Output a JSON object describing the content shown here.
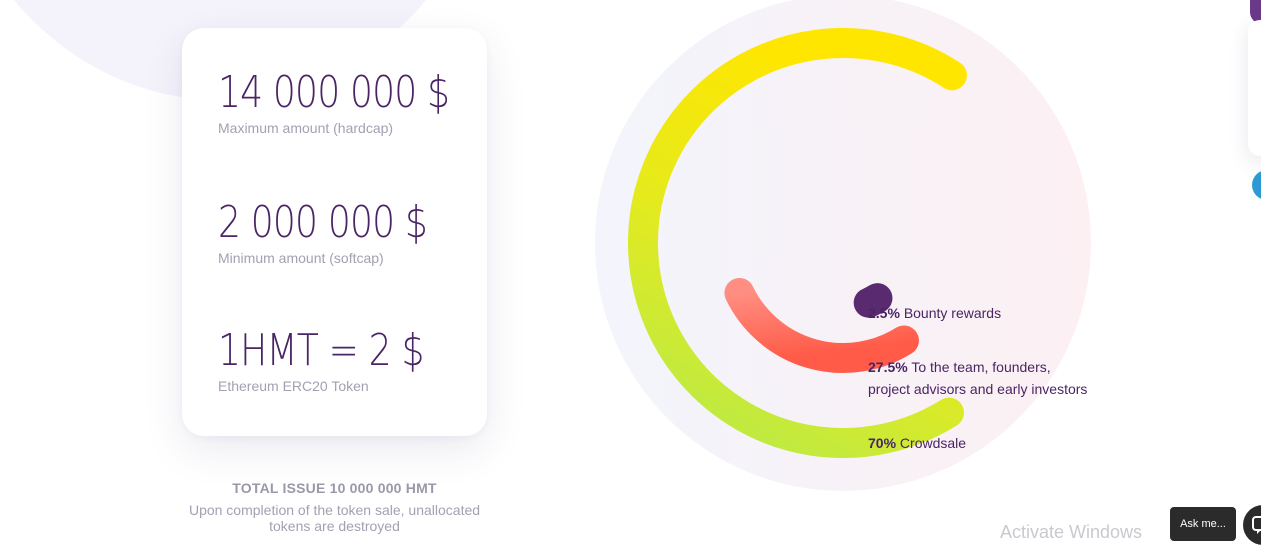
{
  "stats": [
    {
      "value": "14 000 000 $",
      "label": "Maximum amount (hardcap)"
    },
    {
      "value": "2 000 000 $",
      "label": "Minimum amount (softcap)"
    },
    {
      "value": "1HMT = 2 $",
      "label": "Ethereum ERC20 Token"
    }
  ],
  "total": {
    "title": "TOTAL ISSUE 10 000 000 HMT",
    "description": "Upon completion of the token sale, unallocated tokens are destroyed"
  },
  "chart_data": {
    "type": "pie",
    "variant": "radial-arcs",
    "slices": [
      {
        "percent": "2.5%",
        "value": 2.5,
        "label": "Bounty rewards",
        "color": "#5a2a70"
      },
      {
        "percent": "27.5%",
        "value": 27.5,
        "label": "To the team, founders,",
        "label2": "project advisors and early investors",
        "color_start": "#ff8a80",
        "color_end": "#ff5a4a"
      },
      {
        "percent": "70%",
        "value": 70,
        "label": "Crowdsale",
        "color_start": "#b8ec4a",
        "color_end": "#ffe600"
      }
    ]
  },
  "overlay": {
    "watermark": "Activate Windows",
    "ask_label": "Ask me..."
  },
  "colors": {
    "primary_text": "#4a2465",
    "muted_text": "#a3a1b2"
  }
}
